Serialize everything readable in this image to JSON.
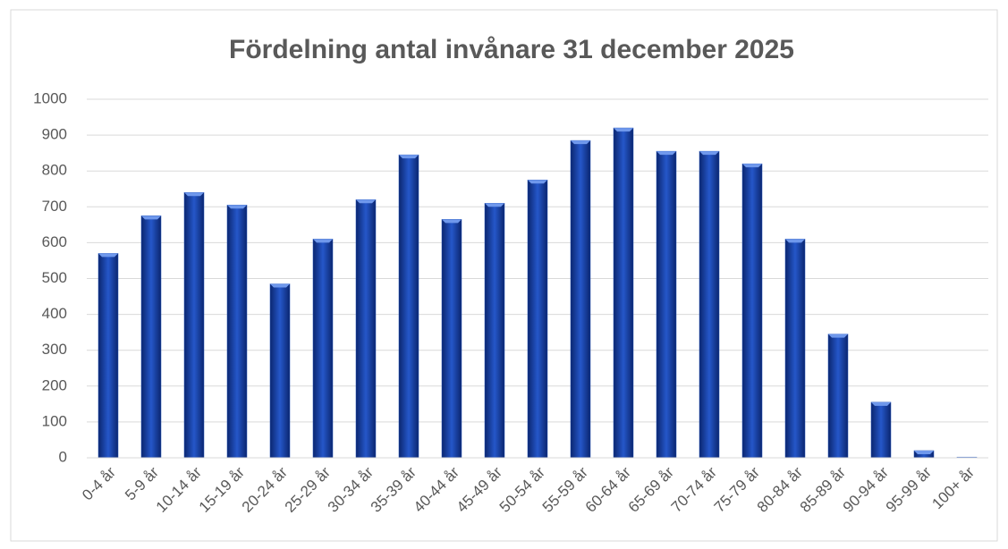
{
  "chart_data": {
    "type": "bar",
    "title": "Fördelning antal invånare 31 december 2025",
    "categories": [
      "0-4 år",
      "5-9 år",
      "10-14 år",
      "15-19 år",
      "20-24 år",
      "25-29 år",
      "30-34 år",
      "35-39 år",
      "40-44 år",
      "45-49 år",
      "50-54 år",
      "55-59 år",
      "60-64 år",
      "65-69 år",
      "70-74 år",
      "75-79 år",
      "80-84 år",
      "85-89 år",
      "90-94 år",
      "95-99 år",
      "100+ år"
    ],
    "values": [
      570,
      675,
      740,
      705,
      485,
      610,
      720,
      845,
      665,
      710,
      775,
      885,
      920,
      855,
      855,
      820,
      610,
      345,
      155,
      20,
      2
    ],
    "color": "#1f4fb4",
    "ylim": [
      0,
      1000
    ],
    "yticks": [
      0,
      100,
      200,
      300,
      400,
      500,
      600,
      700,
      800,
      900,
      1000
    ],
    "grid": true
  }
}
